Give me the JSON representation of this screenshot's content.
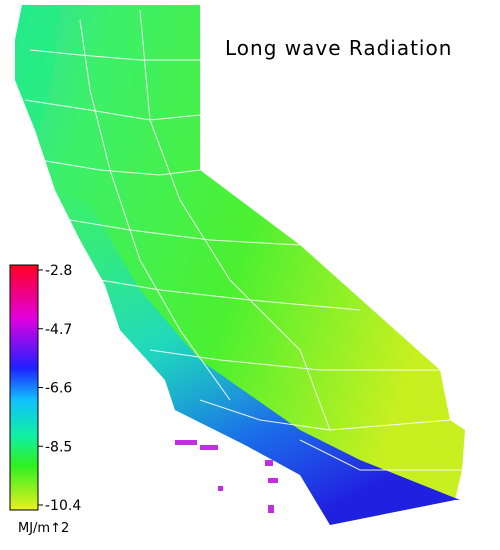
{
  "title": "Long wave Radiation",
  "colorbar": {
    "ticks": [
      -2.8,
      -4.7,
      -6.6,
      -8.5,
      -10.4
    ],
    "unit": "MJ/m↑2"
  }
}
